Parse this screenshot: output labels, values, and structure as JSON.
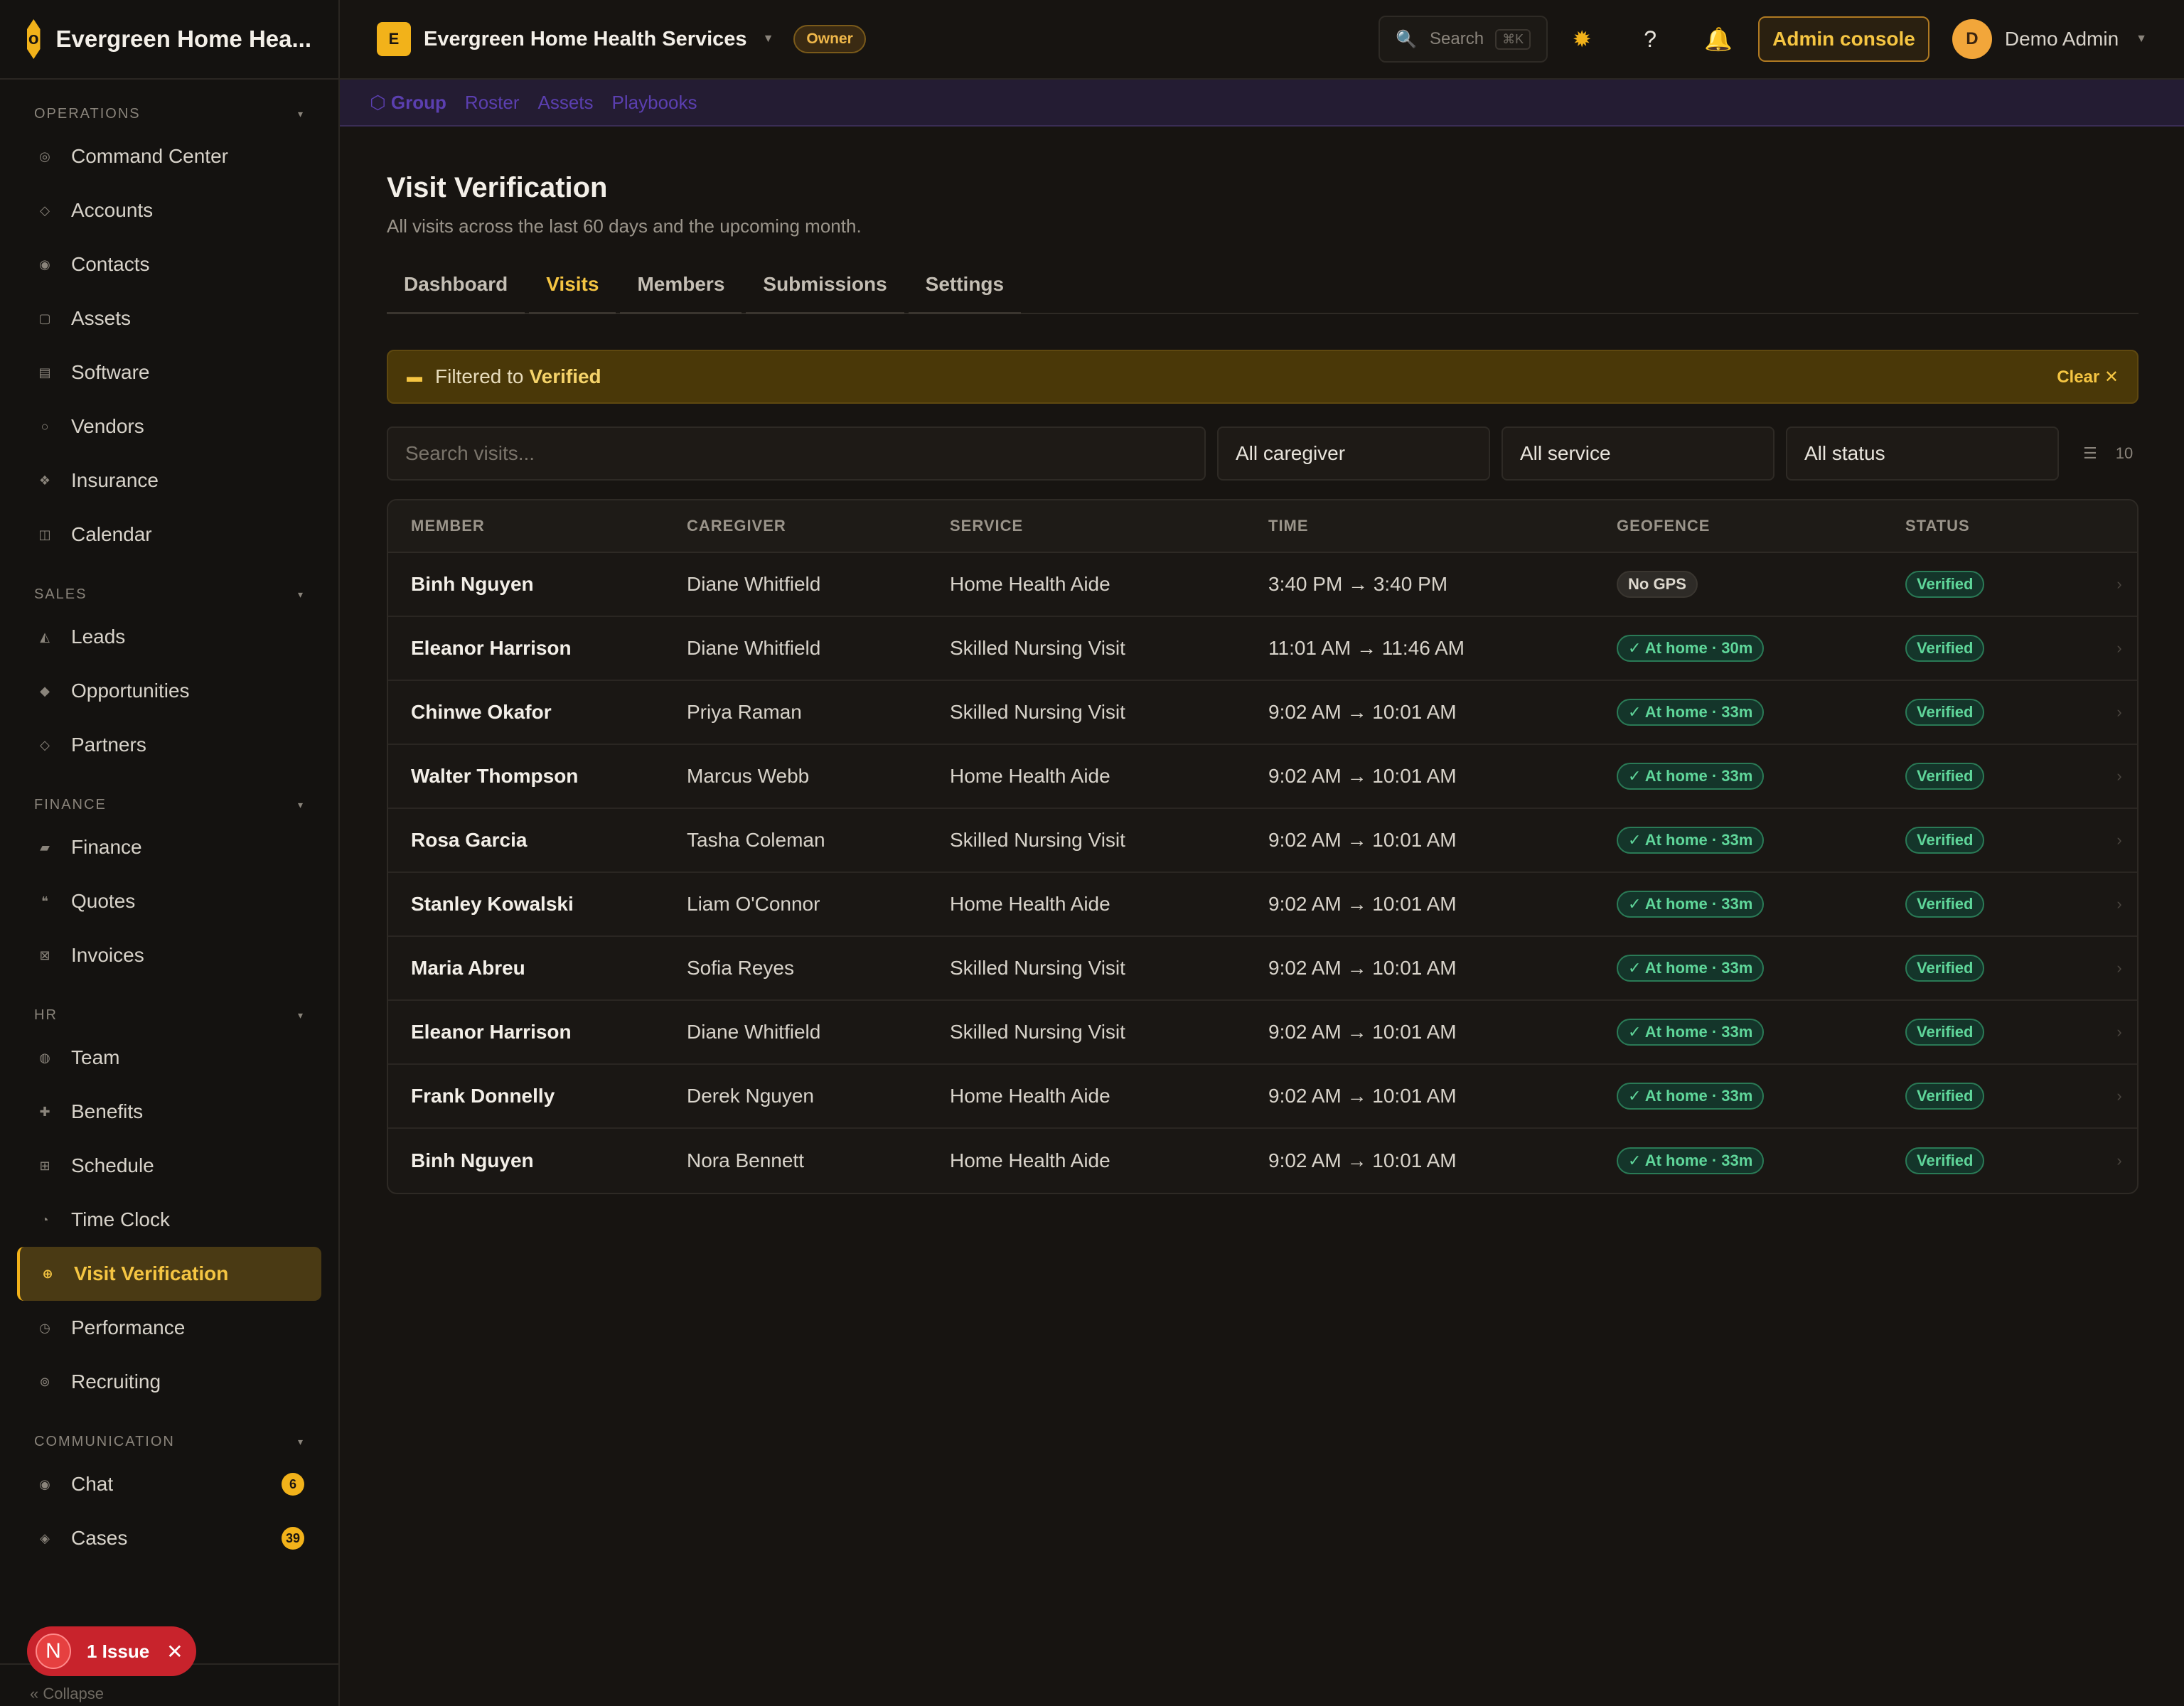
{
  "brand": {
    "name": "Evergreen Home Hea...",
    "logo_glyph": "o"
  },
  "sidebar": {
    "sections": [
      {
        "title": "OPERATIONS",
        "items": [
          {
            "label": "Command Center",
            "icon": "target-icon",
            "glyph": "◎"
          },
          {
            "label": "Accounts",
            "icon": "diamond-icon",
            "glyph": "◇"
          },
          {
            "label": "Contacts",
            "icon": "contact-icon",
            "glyph": "◉"
          },
          {
            "label": "Assets",
            "icon": "box-icon",
            "glyph": "▢"
          },
          {
            "label": "Software",
            "icon": "list-icon",
            "glyph": "▤"
          },
          {
            "label": "Vendors",
            "icon": "circle-icon",
            "glyph": "○"
          },
          {
            "label": "Insurance",
            "icon": "shield-icon",
            "glyph": "❖"
          },
          {
            "label": "Calendar",
            "icon": "calendar-icon",
            "glyph": "◫"
          }
        ]
      },
      {
        "title": "SALES",
        "items": [
          {
            "label": "Leads",
            "icon": "funnel-icon",
            "glyph": "◭"
          },
          {
            "label": "Opportunities",
            "icon": "diamond-filled-icon",
            "glyph": "◆"
          },
          {
            "label": "Partners",
            "icon": "diamond-icon",
            "glyph": "◇"
          }
        ]
      },
      {
        "title": "FINANCE",
        "items": [
          {
            "label": "Finance",
            "icon": "wallet-icon",
            "glyph": "▰"
          },
          {
            "label": "Quotes",
            "icon": "quote-icon",
            "glyph": "❝"
          },
          {
            "label": "Invoices",
            "icon": "invoice-icon",
            "glyph": "⊠"
          }
        ]
      },
      {
        "title": "HR",
        "items": [
          {
            "label": "Team",
            "icon": "team-icon",
            "glyph": "◍"
          },
          {
            "label": "Benefits",
            "icon": "plus-icon",
            "glyph": "✚"
          },
          {
            "label": "Schedule",
            "icon": "grid-icon",
            "glyph": "⊞"
          },
          {
            "label": "Time Clock",
            "icon": "clock-icon",
            "glyph": "◔"
          },
          {
            "label": "Visit Verification",
            "icon": "globe-icon",
            "glyph": "⊕",
            "active": true
          },
          {
            "label": "Performance",
            "icon": "gauge-icon",
            "glyph": "◷"
          },
          {
            "label": "Recruiting",
            "icon": "recruit-icon",
            "glyph": "⊚"
          }
        ]
      },
      {
        "title": "COMMUNICATION",
        "items": [
          {
            "label": "Chat",
            "icon": "chat-icon",
            "glyph": "◉",
            "badge": "6"
          },
          {
            "label": "Cases",
            "icon": "case-icon",
            "glyph": "◈",
            "badge": "39"
          }
        ]
      }
    ],
    "collapse_label": "Collapse",
    "issue_pill": {
      "avatar": "N",
      "label": "1 Issue"
    }
  },
  "topbar": {
    "workspace_letter": "E",
    "workspace_name": "Evergreen Home Health Services",
    "role_badge": "Owner",
    "search_label": "Search",
    "search_shortcut": "⌘K",
    "admin_button": "Admin console",
    "user_initial": "D",
    "user_name": "Demo Admin"
  },
  "subnav": [
    "⬡ Group",
    "Roster",
    "Assets",
    "Playbooks"
  ],
  "page": {
    "title": "Visit Verification",
    "subtitle": "All visits across the last 60 days and the upcoming month.",
    "tabs": [
      "Dashboard",
      "Visits",
      "Members",
      "Submissions",
      "Settings"
    ],
    "active_tab": "Visits"
  },
  "filter_banner": {
    "prefix": "Filtered to",
    "value": "Verified",
    "clear_label": "Clear ✕"
  },
  "controls": {
    "search_placeholder": "Search visits...",
    "caregiver": "All caregiver",
    "service": "All service",
    "status": "All status",
    "count": "10"
  },
  "table": {
    "headers": [
      "MEMBER",
      "CAREGIVER",
      "SERVICE",
      "TIME",
      "GEOFENCE",
      "STATUS"
    ],
    "rows": [
      {
        "member": "Binh Nguyen",
        "caregiver": "Diane Whitfield",
        "service": "Home Health Aide",
        "time": "3:40 PM → 3:40 PM",
        "geofence": "No GPS",
        "geofence_type": "nogps",
        "status": "Verified"
      },
      {
        "member": "Eleanor Harrison",
        "caregiver": "Diane Whitfield",
        "service": "Skilled Nursing Visit",
        "time": "11:01 AM → 11:46 AM",
        "geofence": "✓ At home · 30m",
        "geofence_type": "home",
        "status": "Verified"
      },
      {
        "member": "Chinwe Okafor",
        "caregiver": "Priya Raman",
        "service": "Skilled Nursing Visit",
        "time": "9:02 AM → 10:01 AM",
        "geofence": "✓ At home · 33m",
        "geofence_type": "home",
        "status": "Verified"
      },
      {
        "member": "Walter Thompson",
        "caregiver": "Marcus Webb",
        "service": "Home Health Aide",
        "time": "9:02 AM → 10:01 AM",
        "geofence": "✓ At home · 33m",
        "geofence_type": "home",
        "status": "Verified"
      },
      {
        "member": "Rosa Garcia",
        "caregiver": "Tasha Coleman",
        "service": "Skilled Nursing Visit",
        "time": "9:02 AM → 10:01 AM",
        "geofence": "✓ At home · 33m",
        "geofence_type": "home",
        "status": "Verified"
      },
      {
        "member": "Stanley Kowalski",
        "caregiver": "Liam O'Connor",
        "service": "Home Health Aide",
        "time": "9:02 AM → 10:01 AM",
        "geofence": "✓ At home · 33m",
        "geofence_type": "home",
        "status": "Verified"
      },
      {
        "member": "Maria Abreu",
        "caregiver": "Sofia Reyes",
        "service": "Skilled Nursing Visit",
        "time": "9:02 AM → 10:01 AM",
        "geofence": "✓ At home · 33m",
        "geofence_type": "home",
        "status": "Verified"
      },
      {
        "member": "Eleanor Harrison",
        "caregiver": "Diane Whitfield",
        "service": "Skilled Nursing Visit",
        "time": "9:02 AM → 10:01 AM",
        "geofence": "✓ At home · 33m",
        "geofence_type": "home",
        "status": "Verified"
      },
      {
        "member": "Frank Donnelly",
        "caregiver": "Derek Nguyen",
        "service": "Home Health Aide",
        "time": "9:02 AM → 10:01 AM",
        "geofence": "✓ At home · 33m",
        "geofence_type": "home",
        "status": "Verified"
      },
      {
        "member": "Binh Nguyen",
        "caregiver": "Nora Bennett",
        "service": "Home Health Aide",
        "time": "9:02 AM → 10:01 AM",
        "geofence": "✓ At home · 33m",
        "geofence_type": "home",
        "status": "Verified"
      }
    ]
  },
  "colors": {
    "accent": "#f2b21a",
    "success": "#5fd69a",
    "danger": "#c8232c"
  }
}
